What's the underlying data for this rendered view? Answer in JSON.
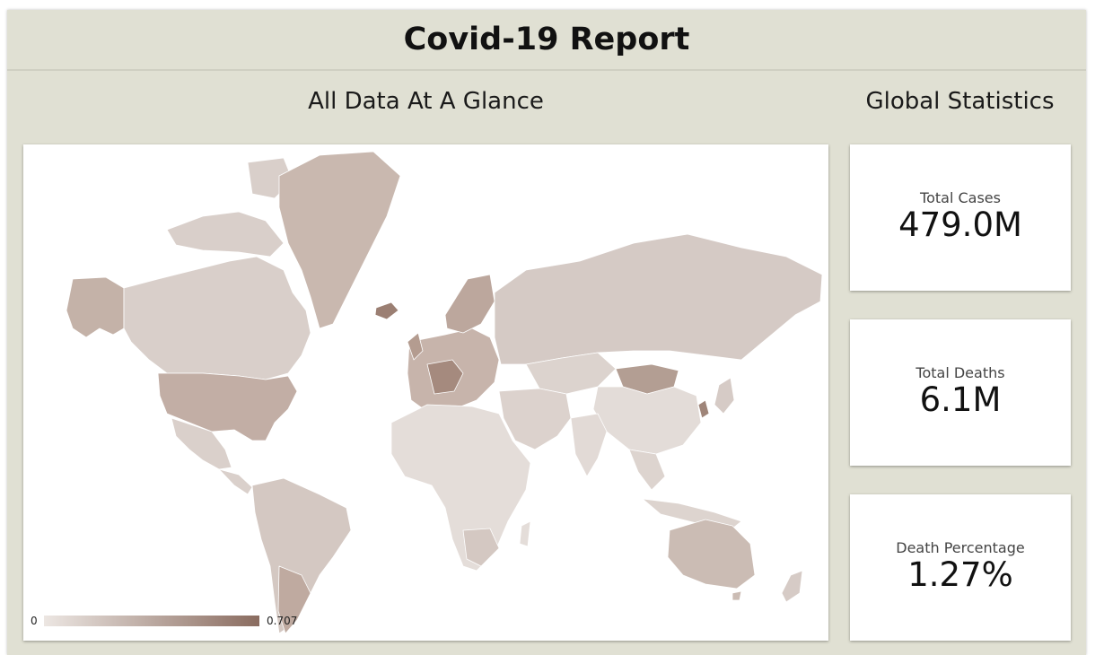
{
  "header": {
    "title": "Covid-19 Report"
  },
  "map_section": {
    "title": "All Data At A Glance",
    "legend": {
      "min": "0",
      "max": "0.707",
      "color_low": "#ece6e2",
      "color_high": "#8a6c60"
    }
  },
  "stats_section": {
    "title": "Global Statistics",
    "cards": [
      {
        "label": "Total Cases",
        "value": "479.0M"
      },
      {
        "label": "Total Deaths",
        "value": "6.1M"
      },
      {
        "label": "Death Percentage",
        "value": "1.27%"
      }
    ]
  },
  "colors": {
    "page_bg": "#e0e0d3",
    "map_light": "#e6dfdb",
    "map_mid": "#d6cbc6",
    "map_dark": "#b8a59b",
    "map_darkest": "#8a6c60"
  }
}
